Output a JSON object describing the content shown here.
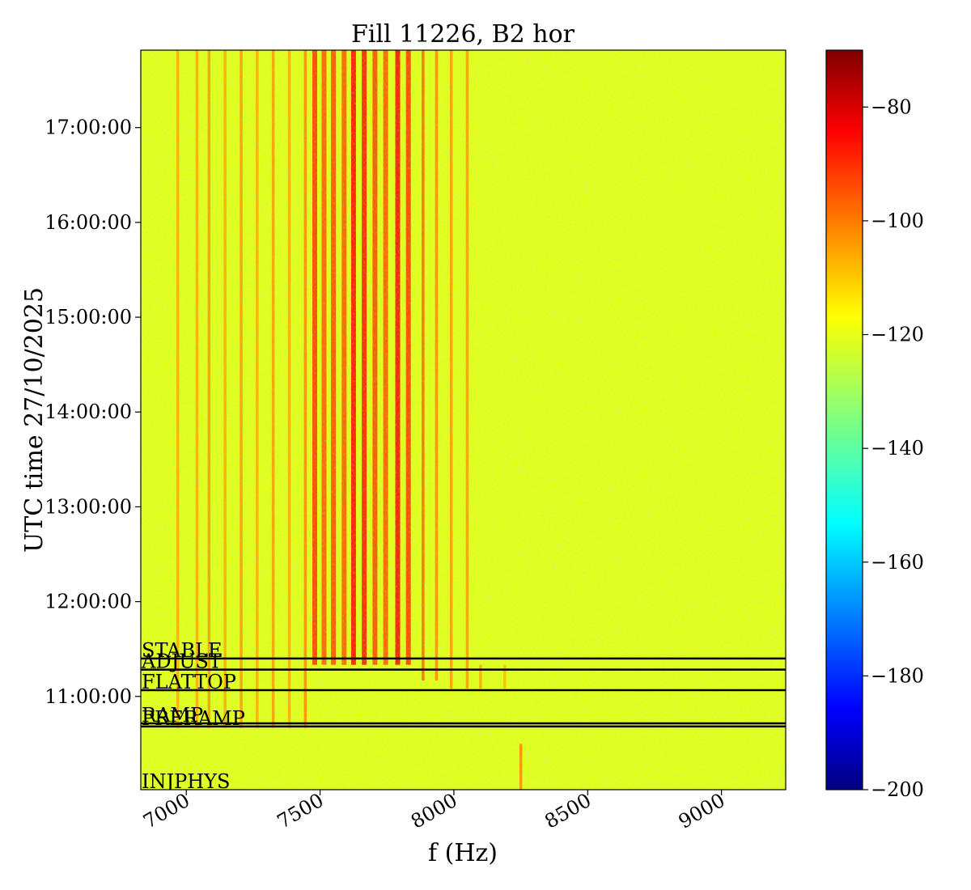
{
  "chart_data": {
    "type": "heatmap",
    "title": "Fill 11226, B2 hor",
    "xlabel": "f (Hz)",
    "ylabel": "UTC time 27/10/2025",
    "xlim": [
      6830,
      9240
    ],
    "x_ticks": [
      7000,
      7500,
      8000,
      8500,
      9000
    ],
    "x_tick_labels": [
      "7000",
      "7500",
      "8000",
      "8500",
      "9000"
    ],
    "y_range_time": [
      "10:01:00",
      "17:49:00"
    ],
    "y_ticks": [
      "11:00:00",
      "12:00:00",
      "13:00:00",
      "14:00:00",
      "15:00:00",
      "16:00:00",
      "17:00:00"
    ],
    "y_tick_labels": [
      "11:00:00",
      "12:00:00",
      "13:00:00",
      "14:00:00",
      "15:00:00",
      "16:00:00",
      "17:00:00"
    ],
    "colormap": "jet",
    "colorbar_range": [
      -200,
      -70
    ],
    "colorbar_ticks": [
      -200,
      -180,
      -160,
      -140,
      -120,
      -100,
      -80
    ],
    "colorbar_tick_labels": [
      "−200",
      "−180",
      "−160",
      "−140",
      "−120",
      "−100",
      "−80"
    ],
    "background_level_db": -122,
    "beam_modes": [
      {
        "label": "STABLE",
        "time": "11:24:00"
      },
      {
        "label": "ADJUST",
        "time": "11:17:00"
      },
      {
        "label": "FLATTOP",
        "time": "11:04:00"
      },
      {
        "label": "RAMP",
        "time": "10:43:00"
      },
      {
        "label": "PRERAMP",
        "time": "10:41:00"
      },
      {
        "label": "INJPHYS",
        "time": "10:01:00"
      }
    ],
    "spectral_lines": [
      {
        "f": 6968,
        "db": -108,
        "start": "10:40:00",
        "end": "17:49:00"
      },
      {
        "f": 7040,
        "db": -108,
        "start": "10:40:00",
        "end": "17:49:00"
      },
      {
        "f": 7085,
        "db": -106,
        "start": "10:40:00",
        "end": "17:49:00"
      },
      {
        "f": 7145,
        "db": -108,
        "start": "10:40:00",
        "end": "17:49:00"
      },
      {
        "f": 7205,
        "db": -106,
        "start": "10:40:00",
        "end": "17:49:00"
      },
      {
        "f": 7265,
        "db": -108,
        "start": "10:40:00",
        "end": "17:49:00"
      },
      {
        "f": 7325,
        "db": -106,
        "start": "10:40:00",
        "end": "17:49:00"
      },
      {
        "f": 7385,
        "db": -108,
        "start": "10:40:00",
        "end": "17:49:00"
      },
      {
        "f": 7445,
        "db": -104,
        "start": "10:40:00",
        "end": "17:49:00"
      },
      {
        "f": 7480,
        "db": -94,
        "start": "11:20:00",
        "end": "17:49:00"
      },
      {
        "f": 7515,
        "db": -98,
        "start": "11:20:00",
        "end": "17:49:00"
      },
      {
        "f": 7550,
        "db": -96,
        "start": "11:20:00",
        "end": "17:49:00"
      },
      {
        "f": 7590,
        "db": -98,
        "start": "11:20:00",
        "end": "17:49:00"
      },
      {
        "f": 7625,
        "db": -88,
        "start": "11:20:00",
        "end": "17:49:00"
      },
      {
        "f": 7665,
        "db": -90,
        "start": "11:20:00",
        "end": "17:49:00"
      },
      {
        "f": 7705,
        "db": -96,
        "start": "11:20:00",
        "end": "17:49:00"
      },
      {
        "f": 7745,
        "db": -98,
        "start": "11:20:00",
        "end": "17:49:00"
      },
      {
        "f": 7790,
        "db": -88,
        "start": "11:20:00",
        "end": "17:49:00"
      },
      {
        "f": 7830,
        "db": -94,
        "start": "11:20:00",
        "end": "17:49:00"
      },
      {
        "f": 7885,
        "db": -100,
        "start": "11:10:00",
        "end": "17:49:00"
      },
      {
        "f": 7935,
        "db": -104,
        "start": "11:10:00",
        "end": "17:49:00"
      },
      {
        "f": 7990,
        "db": -106,
        "start": "11:05:00",
        "end": "17:49:00"
      },
      {
        "f": 8050,
        "db": -106,
        "start": "11:05:00",
        "end": "17:49:00"
      },
      {
        "f": 8100,
        "db": -108,
        "start": "11:05:00",
        "end": "11:20:00"
      },
      {
        "f": 8190,
        "db": -110,
        "start": "11:05:00",
        "end": "11:20:00"
      },
      {
        "f": 8250,
        "db": -104,
        "start": "10:01:00",
        "end": "10:30:00"
      }
    ]
  }
}
